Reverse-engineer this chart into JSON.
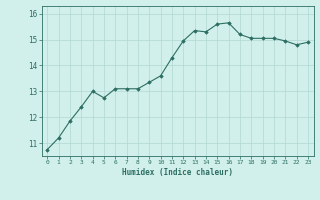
{
  "x": [
    0,
    1,
    2,
    3,
    4,
    5,
    6,
    7,
    8,
    9,
    10,
    11,
    12,
    13,
    14,
    15,
    16,
    17,
    18,
    19,
    20,
    21,
    22,
    23
  ],
  "y": [
    10.75,
    11.2,
    11.85,
    12.4,
    13.0,
    12.75,
    13.1,
    13.1,
    13.1,
    13.35,
    13.6,
    14.3,
    14.95,
    15.35,
    15.3,
    15.6,
    15.65,
    15.2,
    15.05,
    15.05,
    15.05,
    14.95,
    14.8,
    14.9
  ],
  "bg_color": "#d1f0eb",
  "line_color": "#2d6e63",
  "marker_color": "#2d6e63",
  "grid_color": "#b0d8d2",
  "tick_color": "#2d6e63",
  "xlabel": "Humidex (Indice chaleur)",
  "ylim": [
    10.5,
    16.3
  ],
  "yticks": [
    11,
    12,
    13,
    14,
    15,
    16
  ],
  "xticks": [
    0,
    1,
    2,
    3,
    4,
    5,
    6,
    7,
    8,
    9,
    10,
    11,
    12,
    13,
    14,
    15,
    16,
    17,
    18,
    19,
    20,
    21,
    22,
    23
  ],
  "figsize": [
    3.2,
    2.0
  ],
  "dpi": 100
}
